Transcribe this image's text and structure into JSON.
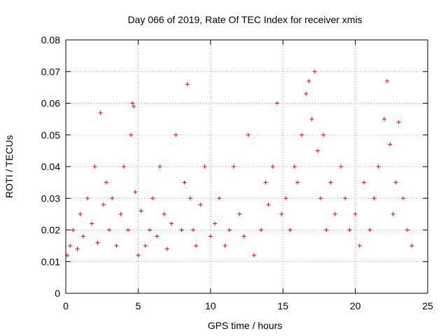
{
  "chart_data": {
    "type": "scatter",
    "title": "Day 066 of 2019, Rate Of TEC Index for receiver xmis",
    "xlabel": "GPS time / hours",
    "ylabel": "ROTI / TECUs",
    "xlim": [
      0,
      25
    ],
    "ylim": [
      0,
      0.08
    ],
    "xticks": [
      "0",
      "5",
      "10",
      "15",
      "20",
      "25"
    ],
    "yticks": [
      "0",
      "0.01",
      "0.02",
      "0.03",
      "0.04",
      "0.05",
      "0.06",
      "0.07",
      "0.08"
    ],
    "grid": true,
    "marker": "plus",
    "point_color": "#ff0000",
    "series": [
      {
        "name": "ROTI",
        "x": [
          0.1,
          0.3,
          0.5,
          0.8,
          1.0,
          1.2,
          1.5,
          1.8,
          2.0,
          2.2,
          2.4,
          2.6,
          2.8,
          3.0,
          3.2,
          3.5,
          3.8,
          4.0,
          4.3,
          4.5,
          4.6,
          4.7,
          4.8,
          5.0,
          5.2,
          5.5,
          5.8,
          6.0,
          6.3,
          6.5,
          6.8,
          7.0,
          7.3,
          7.6,
          8.0,
          8.2,
          8.4,
          8.6,
          8.8,
          9.0,
          9.3,
          9.6,
          10.0,
          10.3,
          10.6,
          11.0,
          11.3,
          11.6,
          12.0,
          12.3,
          12.6,
          13.0,
          13.5,
          13.8,
          14.0,
          14.3,
          14.6,
          14.9,
          15.2,
          15.5,
          15.8,
          16.0,
          16.3,
          16.6,
          16.8,
          17.0,
          17.2,
          17.4,
          17.6,
          17.8,
          18.0,
          18.3,
          18.6,
          19.0,
          19.3,
          19.6,
          20.0,
          20.3,
          20.6,
          21.0,
          21.3,
          21.6,
          22.0,
          22.2,
          22.4,
          22.6,
          22.8,
          23.0,
          23.3,
          23.6,
          23.9
        ],
        "y": [
          0.012,
          0.015,
          0.02,
          0.014,
          0.025,
          0.018,
          0.03,
          0.022,
          0.04,
          0.016,
          0.057,
          0.028,
          0.035,
          0.02,
          0.03,
          0.015,
          0.025,
          0.04,
          0.02,
          0.05,
          0.06,
          0.059,
          0.032,
          0.012,
          0.026,
          0.015,
          0.02,
          0.03,
          0.018,
          0.04,
          0.025,
          0.014,
          0.022,
          0.05,
          0.02,
          0.035,
          0.066,
          0.03,
          0.02,
          0.015,
          0.028,
          0.04,
          0.018,
          0.022,
          0.03,
          0.015,
          0.02,
          0.04,
          0.025,
          0.018,
          0.05,
          0.012,
          0.02,
          0.035,
          0.028,
          0.04,
          0.06,
          0.025,
          0.03,
          0.02,
          0.04,
          0.035,
          0.05,
          0.063,
          0.067,
          0.055,
          0.07,
          0.045,
          0.03,
          0.05,
          0.02,
          0.035,
          0.025,
          0.04,
          0.03,
          0.02,
          0.025,
          0.015,
          0.035,
          0.02,
          0.03,
          0.04,
          0.055,
          0.067,
          0.047,
          0.025,
          0.035,
          0.054,
          0.03,
          0.02,
          0.015
        ]
      }
    ]
  }
}
